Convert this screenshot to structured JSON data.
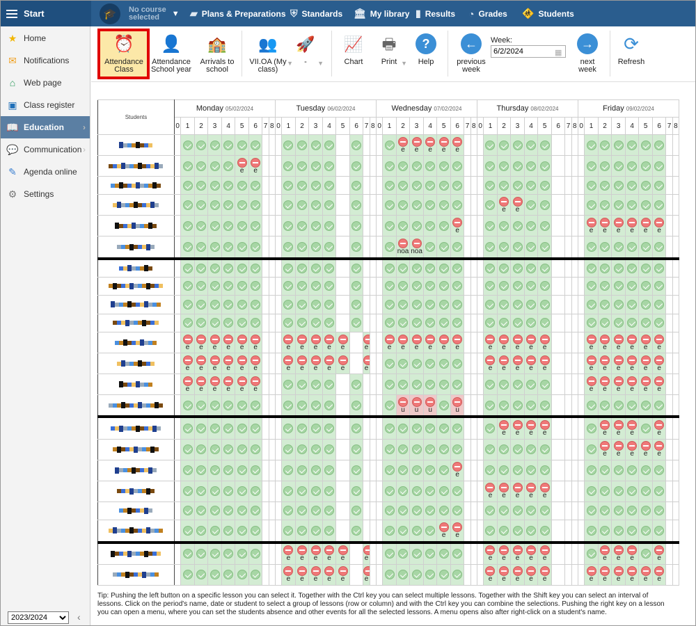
{
  "topbar": {
    "start": "Start",
    "course_line1": "No course",
    "course_line2": "selected",
    "nav": [
      {
        "label": "Plans & Preparations",
        "icon": "briefcase-icon"
      },
      {
        "label": "Standards",
        "icon": "shield-check-icon"
      },
      {
        "label": "My library",
        "icon": "library-icon"
      },
      {
        "label": "Results",
        "icon": "bar-chart-icon"
      },
      {
        "label": "Grades",
        "icon": "gauge-icon"
      },
      {
        "label": "Students",
        "icon": "students-icon"
      }
    ]
  },
  "sidebar": {
    "items": [
      {
        "label": "Home",
        "icon": "star-icon"
      },
      {
        "label": "Notifications",
        "icon": "envelope-icon"
      },
      {
        "label": "Web page",
        "icon": "house-icon"
      },
      {
        "label": "Class register",
        "icon": "register-icon"
      },
      {
        "label": "Education",
        "icon": "book-icon",
        "active": true
      },
      {
        "label": "Communication",
        "icon": "chat-icon"
      },
      {
        "label": "Agenda online",
        "icon": "pencil-icon"
      },
      {
        "label": "Settings",
        "icon": "gear-icon"
      }
    ],
    "year": "2023/2024"
  },
  "toolbar": {
    "attendance_class": [
      "Attendance",
      "Class"
    ],
    "attendance_year": [
      "Attendance",
      "School year"
    ],
    "arrivals": [
      "Arrivals to",
      "school"
    ],
    "myclass": [
      "VII.OA (My",
      "class)"
    ],
    "dash": "-",
    "chart": "Chart",
    "print": "Print",
    "help": "Help",
    "prev": [
      "previous",
      "week"
    ],
    "week_label": "Week:",
    "week_value": "6/2/2024",
    "next": [
      "next",
      "week"
    ],
    "refresh": "Refresh"
  },
  "grid": {
    "students_header": "Students",
    "days": [
      {
        "name": "Monday",
        "date": "05/02/2024"
      },
      {
        "name": "Tuesday",
        "date": "06/02/2024"
      },
      {
        "name": "Wednesday",
        "date": "07/02/2024"
      },
      {
        "name": "Thursday",
        "date": "08/02/2024"
      },
      {
        "name": "Friday",
        "date": "09/02/2024"
      }
    ],
    "periods": [
      "0",
      "1",
      "2",
      "3",
      "4",
      "5",
      "6",
      "7",
      "8"
    ],
    "rows": [
      {
        "thick": false,
        "pattern": [
          ".OOOOOO..",
          ".OOOO.O..",
          ".OAAAAA..",
          ".OOOOO...",
          ".OOOOOO.."
        ],
        "labels": {
          "2": [
            "",
            "",
            "eeeee",
            "",
            ""
          ]
        }
      },
      {
        "thick": false,
        "pattern": [
          ".OOOOAA..",
          ".OOOO.O..",
          ".OOOOOO..",
          ".OOOOO...",
          ".OOOOOO.."
        ],
        "labels": {
          "5": [
            "ee",
            "",
            "",
            "",
            ""
          ]
        }
      },
      {
        "thick": false,
        "pattern": [
          ".OOOOOO..",
          ".OOOO.O..",
          ".OOOOOO..",
          ".OOOOO...",
          ".OOOOOO.."
        ]
      },
      {
        "thick": false,
        "pattern": [
          ".OOOOOO..",
          ".OOOO.O..",
          ".OOOOOO..",
          ".OAAOO...",
          ".OOOOOO.."
        ],
        "labels": {
          "x": [
            "",
            "",
            "",
            "ee",
            ""
          ]
        }
      },
      {
        "thick": false,
        "pattern": [
          ".OOOOOO..",
          ".OOOO.O..",
          ".OOOOOA..",
          ".OOOOO...",
          ".AAAAAA.."
        ],
        "labels": {
          "x": [
            "",
            "",
            "e",
            "",
            "eeeeee"
          ]
        }
      },
      {
        "thick": true,
        "pattern": [
          ".OOOOOO..",
          ".OOOO.O..",
          ".OAAOOO..",
          ".OOOOO...",
          ".OOOOOO.."
        ],
        "labels": {
          "x": [
            "",
            "",
            "noa noa",
            "",
            ""
          ]
        }
      },
      {
        "thick": false,
        "pattern": [
          ".OOOOOO..",
          ".OOOO.O..",
          ".OOOOOO..",
          ".OOOOO...",
          ".OOOOOO.."
        ]
      },
      {
        "thick": false,
        "pattern": [
          ".OOOOOO..",
          ".OOOO.O..",
          ".OOOOOO..",
          ".OOOOO...",
          ".OOOOOO.."
        ]
      },
      {
        "thick": false,
        "pattern": [
          ".OOOOOO..",
          ".OOOO.O..",
          ".OOOOOO..",
          ".OOOOO...",
          ".OOOOOO.."
        ]
      },
      {
        "thick": false,
        "pattern": [
          ".OOOOOO..",
          ".OOOO.O..",
          ".OOOOOO..",
          ".OOOOO...",
          ".OOOOOO.."
        ]
      },
      {
        "thick": false,
        "pattern": [
          ".AAAAAA..",
          ".AAAAA.A.",
          ".AAAAAA..",
          ".AAAAA...",
          ".AAAAAA.."
        ]
      },
      {
        "thick": false,
        "pattern": [
          ".AAAAAA..",
          ".AAAAA.A.",
          ".OOOOOO..",
          ".AAAAA...",
          ".AAAAAA.."
        ]
      },
      {
        "thick": false,
        "pattern": [
          ".AAAAAA..",
          ".OOOO.O..",
          ".OOOOOO..",
          ".OOOOO...",
          ".AAAAAA.."
        ]
      },
      {
        "thick": true,
        "pattern": [
          ".OOOOOO..",
          ".OOOO.O..",
          ".OUUUOU..",
          ".OOOOO...",
          ".OOOOOO.."
        ]
      },
      {
        "thick": false,
        "pattern": [
          ".OOOOOO..",
          ".OOOO.O..",
          ".OOOOOO..",
          ".OAAAA...",
          ".OAAAOA.."
        ]
      },
      {
        "thick": false,
        "pattern": [
          ".OOOOOO..",
          ".OOOO.O..",
          ".OOOOOO..",
          ".OOOOO...",
          ".OAAAAA.."
        ]
      },
      {
        "thick": false,
        "pattern": [
          ".OOOOOO..",
          ".OOOO.O..",
          ".OOOOOA..",
          ".OOOOO...",
          ".OOOOOO.."
        ]
      },
      {
        "thick": false,
        "pattern": [
          ".OOOOOO..",
          ".OOOO.O..",
          ".OOOOOO..",
          ".AAAAA...",
          ".OOOOOO.."
        ]
      },
      {
        "thick": false,
        "pattern": [
          ".OOOOOO..",
          ".OOOO.O..",
          ".OOOOOO..",
          ".OOOOO...",
          ".OOOOOO.."
        ]
      },
      {
        "thick": true,
        "pattern": [
          ".OOOOOO..",
          ".OOOO.O..",
          ".OOOOAA..",
          ".OOOOO...",
          ".OOOOOO.."
        ]
      },
      {
        "thick": false,
        "pattern": [
          ".OOOOOO..",
          ".AAAAA.A.",
          ".OOOOOO..",
          ".AAAAA...",
          ".OAAAOA.."
        ]
      },
      {
        "thick": false,
        "pattern": [
          ".OOOOOO..",
          ".AAAAA.A.",
          ".OOOOOO..",
          ".AAAAA...",
          ".AAAAAA.."
        ]
      }
    ]
  },
  "tip": "Tip: Pushing the left button on a specific lesson you can select it. Together with the Ctrl key you can select multiple lessons. Together with the Shift key you can select an interval of lessons. Click on the period's name, date or student to select a group of lessons (row or column) and with the Ctrl key you can combine the selections. Pushing the right key on a lesson you can open a menu, where you can set the students absence and other events for all the selected lessons. A menu opens also after right-click on a student's name.",
  "colors": {
    "topbar": "#2a5d8e",
    "present": "#a7d6a5",
    "absent": "#ef7878",
    "highlight": "#e00000"
  }
}
